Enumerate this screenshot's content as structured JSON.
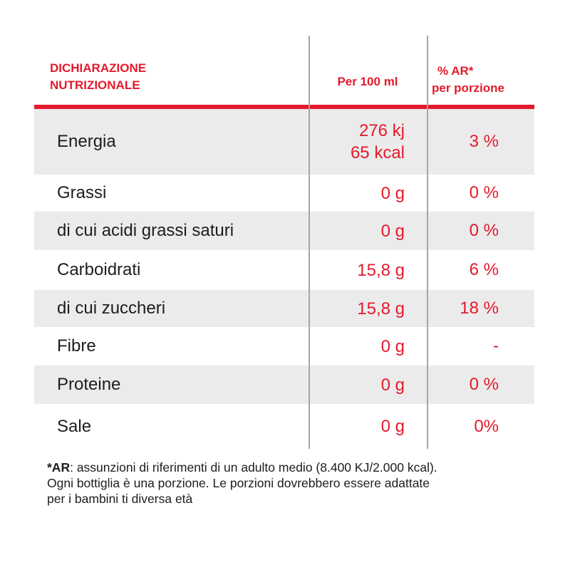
{
  "header": {
    "title_line1": "DICHIARAZIONE",
    "title_line2": "NUTRIZIONALE",
    "per_100": "Per 100 ml",
    "ar_line1": "% AR*",
    "ar_line2": "per porzione"
  },
  "rows": [
    {
      "name": "Energia",
      "value_line1": "276 kj",
      "value_line2": "65 kcal",
      "pct": "3 %"
    },
    {
      "name": "Grassi",
      "value": "0 g",
      "pct": "0 %"
    },
    {
      "name": "di cui acidi grassi saturi",
      "value": "0 g",
      "pct": "0 %"
    },
    {
      "name": "Carboidrati",
      "value": "15,8 g",
      "pct": "6 %"
    },
    {
      "name": "di cui zuccheri",
      "value": "15,8 g",
      "pct": "18 %"
    },
    {
      "name": "Fibre",
      "value": "0 g",
      "pct": "-"
    },
    {
      "name": "Proteine",
      "value": "0 g",
      "pct": "0 %"
    },
    {
      "name": "Sale",
      "value": "0 g",
      "pct": "0%"
    }
  ],
  "footnote": {
    "label": "*AR",
    "line1": ": assunzioni di riferimenti di un adulto medio (8.400 KJ/2.000 kcal).",
    "line2": "Ogni bottiglia è una porzione. Le porzioni dovrebbero essere adattate",
    "line3": "per i bambini ti diversa età"
  },
  "colors": {
    "accent": "#e4192b",
    "shade": "#ebebeb",
    "divider": "#a7a7a7",
    "text": "#1d1d1b"
  }
}
